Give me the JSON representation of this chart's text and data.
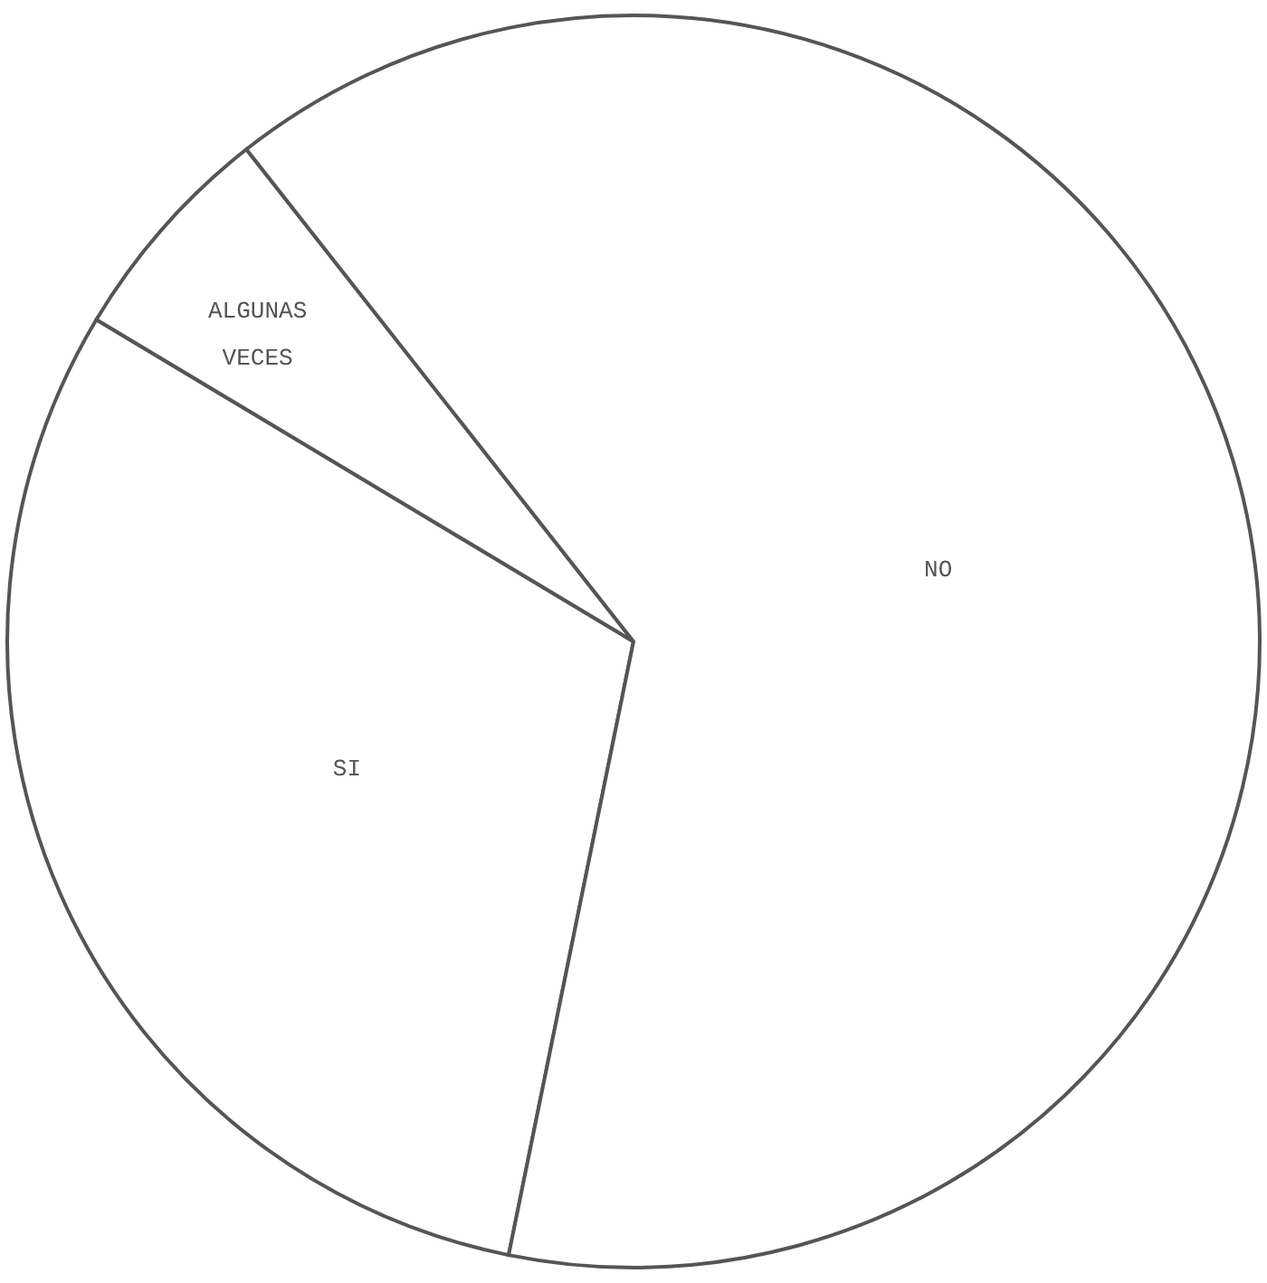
{
  "chart_data": {
    "type": "pie",
    "categories": [
      "SI",
      "ALGUNAS VECES",
      "NO"
    ],
    "values": [
      30.4,
      5.8,
      63.8
    ],
    "colors": [
      "#ffffff",
      "#ffffff",
      "#ffffff"
    ]
  }
}
